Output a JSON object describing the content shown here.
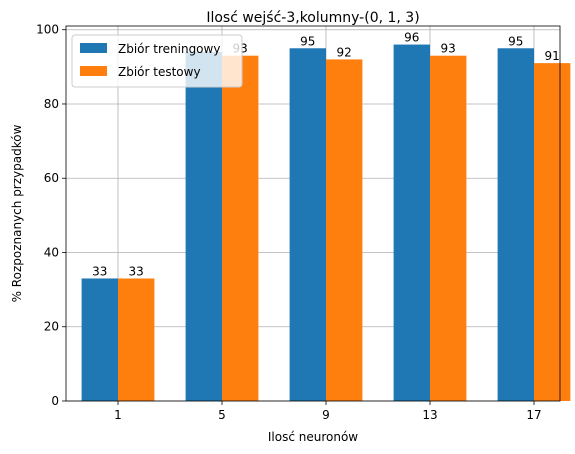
{
  "chart_data": {
    "type": "bar",
    "title": "Ilosć wejść-3,kolumny-(0, 1, 3)",
    "xlabel": "Ilosć neuronów",
    "ylabel": "% Rozpoznanych przypadków",
    "categories": [
      "1",
      "5",
      "9",
      "13",
      "17"
    ],
    "ylim": [
      0,
      101
    ],
    "yticks": [
      0,
      20,
      40,
      60,
      80,
      100
    ],
    "grid": true,
    "legend_position": "top-left",
    "series": [
      {
        "name": "Zbiór treningowy",
        "color": "#1f77b4",
        "values": [
          33,
          94,
          95,
          96,
          95
        ],
        "labels": [
          "33",
          "",
          "95",
          "96",
          "95"
        ]
      },
      {
        "name": "Zbiór testowy",
        "color": "#ff7f0e",
        "values": [
          33,
          93,
          92,
          93,
          91
        ],
        "labels": [
          "33",
          "93",
          "92",
          "93",
          "91"
        ]
      }
    ]
  }
}
